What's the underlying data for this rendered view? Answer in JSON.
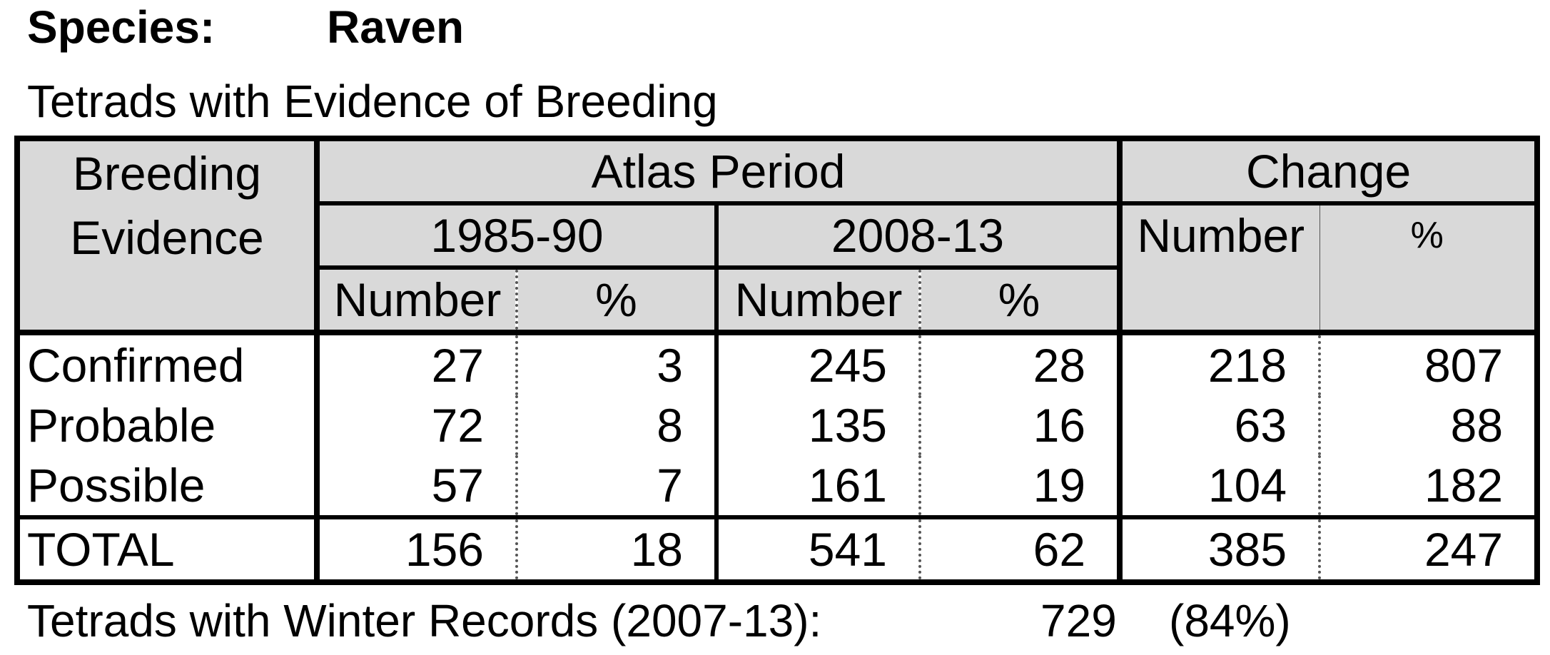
{
  "header": {
    "species_label": "Species:",
    "species_value": "Raven",
    "subtitle": "Tetrads with Evidence of Breeding"
  },
  "table": {
    "col_breeding_line1": "Breeding",
    "col_breeding_line2": "Evidence",
    "group_atlas": "Atlas Period",
    "group_change": "Change",
    "period1": "1985-90",
    "period2": "2008-13",
    "number_label": "Number",
    "percent_label": "%",
    "rows": [
      {
        "label": "Confirmed",
        "p1_num": "27",
        "p1_pct": "3",
        "p2_num": "245",
        "p2_pct": "28",
        "chg_num": "218",
        "chg_pct": "807"
      },
      {
        "label": "Probable",
        "p1_num": "72",
        "p1_pct": "8",
        "p2_num": "135",
        "p2_pct": "16",
        "chg_num": "63",
        "chg_pct": "88"
      },
      {
        "label": "Possible",
        "p1_num": "57",
        "p1_pct": "7",
        "p2_num": "161",
        "p2_pct": "19",
        "chg_num": "104",
        "chg_pct": "182"
      }
    ],
    "total": {
      "label": "TOTAL",
      "p1_num": "156",
      "p1_pct": "18",
      "p2_num": "541",
      "p2_pct": "62",
      "chg_num": "385",
      "chg_pct": "247"
    }
  },
  "footer": {
    "label": "Tetrads with Winter Records (2007-13):",
    "value": "729",
    "percent": "(84%)"
  }
}
